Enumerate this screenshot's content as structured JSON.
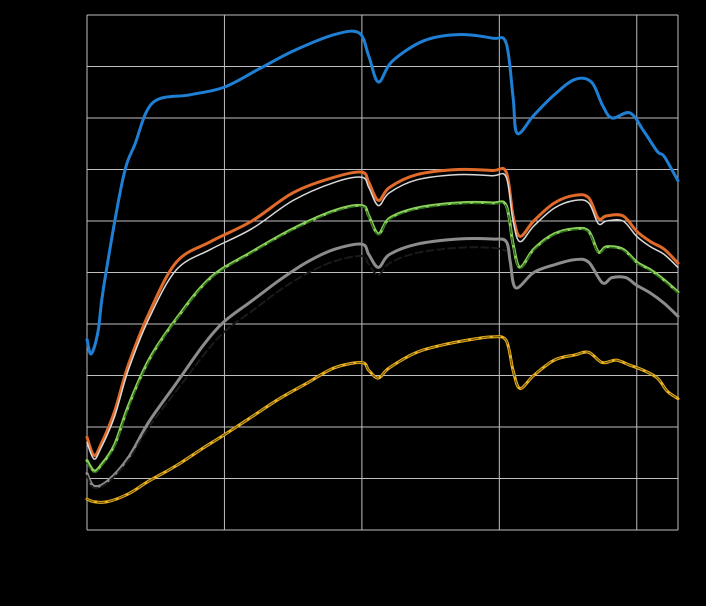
{
  "chart_data": {
    "type": "line",
    "title": "",
    "xlabel": "",
    "ylabel": "",
    "xlim": [
      0,
      4.3
    ],
    "ylim": [
      0,
      10
    ],
    "grid": true,
    "legend": "none",
    "x_grid": [
      0,
      1,
      2,
      3,
      4
    ],
    "y_grid": [
      0,
      1,
      2,
      3,
      4,
      5,
      6,
      7,
      8,
      9,
      10
    ],
    "series": [
      {
        "color": "#1f7fd4",
        "style": "solid",
        "width": 3,
        "points": [
          [
            0,
            3.7
          ],
          [
            0.03,
            3.42
          ],
          [
            0.08,
            3.85
          ],
          [
            0.12,
            4.7
          ],
          [
            0.26,
            6.8
          ],
          [
            0.35,
            7.5
          ],
          [
            0.48,
            8.3
          ],
          [
            0.75,
            8.45
          ],
          [
            1.0,
            8.6
          ],
          [
            1.25,
            8.95
          ],
          [
            1.5,
            9.3
          ],
          [
            1.8,
            9.62
          ],
          [
            1.98,
            9.65
          ],
          [
            2.05,
            9.2
          ],
          [
            2.12,
            8.7
          ],
          [
            2.22,
            9.1
          ],
          [
            2.45,
            9.5
          ],
          [
            2.7,
            9.62
          ],
          [
            2.95,
            9.55
          ],
          [
            3.05,
            9.45
          ],
          [
            3.1,
            8.4
          ],
          [
            3.13,
            7.7
          ],
          [
            3.25,
            8.05
          ],
          [
            3.4,
            8.45
          ],
          [
            3.55,
            8.75
          ],
          [
            3.67,
            8.7
          ],
          [
            3.75,
            8.25
          ],
          [
            3.82,
            8.0
          ],
          [
            3.95,
            8.1
          ],
          [
            4.05,
            7.75
          ],
          [
            4.15,
            7.35
          ],
          [
            4.2,
            7.25
          ],
          [
            4.3,
            6.78
          ]
        ]
      },
      {
        "color": "#e06a2a",
        "style": "solid",
        "width": 3,
        "points": [
          [
            0,
            1.8
          ],
          [
            0.05,
            1.45
          ],
          [
            0.1,
            1.65
          ],
          [
            0.2,
            2.3
          ],
          [
            0.3,
            3.2
          ],
          [
            0.45,
            4.2
          ],
          [
            0.65,
            5.2
          ],
          [
            0.9,
            5.6
          ],
          [
            1.2,
            6.0
          ],
          [
            1.5,
            6.55
          ],
          [
            1.8,
            6.85
          ],
          [
            2.0,
            6.95
          ],
          [
            2.05,
            6.75
          ],
          [
            2.12,
            6.4
          ],
          [
            2.2,
            6.65
          ],
          [
            2.4,
            6.9
          ],
          [
            2.7,
            7.0
          ],
          [
            2.95,
            6.98
          ],
          [
            3.05,
            6.95
          ],
          [
            3.1,
            6.1
          ],
          [
            3.15,
            5.7
          ],
          [
            3.25,
            6.0
          ],
          [
            3.4,
            6.35
          ],
          [
            3.55,
            6.5
          ],
          [
            3.65,
            6.45
          ],
          [
            3.72,
            6.05
          ],
          [
            3.78,
            6.1
          ],
          [
            3.9,
            6.1
          ],
          [
            4.0,
            5.8
          ],
          [
            4.1,
            5.6
          ],
          [
            4.2,
            5.45
          ],
          [
            4.3,
            5.18
          ]
        ]
      },
      {
        "color": "#d9d9d9",
        "style": "solid",
        "width": 1.5,
        "points": [
          [
            0,
            1.7
          ],
          [
            0.05,
            1.38
          ],
          [
            0.1,
            1.58
          ],
          [
            0.2,
            2.2
          ],
          [
            0.3,
            3.1
          ],
          [
            0.45,
            4.1
          ],
          [
            0.65,
            5.05
          ],
          [
            0.9,
            5.45
          ],
          [
            1.2,
            5.85
          ],
          [
            1.5,
            6.4
          ],
          [
            1.8,
            6.75
          ],
          [
            2.0,
            6.85
          ],
          [
            2.05,
            6.65
          ],
          [
            2.12,
            6.3
          ],
          [
            2.2,
            6.55
          ],
          [
            2.4,
            6.8
          ],
          [
            2.7,
            6.9
          ],
          [
            2.95,
            6.88
          ],
          [
            3.05,
            6.85
          ],
          [
            3.1,
            6.0
          ],
          [
            3.15,
            5.6
          ],
          [
            3.25,
            5.9
          ],
          [
            3.4,
            6.25
          ],
          [
            3.55,
            6.4
          ],
          [
            3.65,
            6.35
          ],
          [
            3.72,
            5.95
          ],
          [
            3.78,
            6.0
          ],
          [
            3.9,
            6.0
          ],
          [
            4.0,
            5.7
          ],
          [
            4.1,
            5.5
          ],
          [
            4.2,
            5.35
          ],
          [
            4.3,
            5.1
          ]
        ]
      },
      {
        "color": "#8ccf5a",
        "style": "solid",
        "width": 3,
        "points": [
          [
            0,
            1.35
          ],
          [
            0.05,
            1.15
          ],
          [
            0.1,
            1.25
          ],
          [
            0.2,
            1.65
          ],
          [
            0.3,
            2.4
          ],
          [
            0.45,
            3.3
          ],
          [
            0.65,
            4.1
          ],
          [
            0.9,
            4.9
          ],
          [
            1.2,
            5.4
          ],
          [
            1.5,
            5.85
          ],
          [
            1.8,
            6.2
          ],
          [
            2.0,
            6.3
          ],
          [
            2.05,
            6.1
          ],
          [
            2.12,
            5.75
          ],
          [
            2.2,
            6.05
          ],
          [
            2.4,
            6.25
          ],
          [
            2.7,
            6.35
          ],
          [
            2.95,
            6.35
          ],
          [
            3.05,
            6.3
          ],
          [
            3.1,
            5.55
          ],
          [
            3.15,
            5.1
          ],
          [
            3.25,
            5.45
          ],
          [
            3.4,
            5.75
          ],
          [
            3.55,
            5.85
          ],
          [
            3.65,
            5.8
          ],
          [
            3.72,
            5.4
          ],
          [
            3.78,
            5.5
          ],
          [
            3.9,
            5.45
          ],
          [
            4.0,
            5.2
          ],
          [
            4.1,
            5.05
          ],
          [
            4.2,
            4.85
          ],
          [
            4.3,
            4.62
          ]
        ]
      },
      {
        "color": "#2d6e1e",
        "style": "dashed",
        "width": 1.5,
        "points": [
          [
            0,
            1.3
          ],
          [
            0.05,
            1.12
          ],
          [
            0.1,
            1.22
          ],
          [
            0.2,
            1.62
          ],
          [
            0.3,
            2.36
          ],
          [
            0.45,
            3.27
          ],
          [
            0.65,
            4.08
          ],
          [
            0.9,
            4.88
          ],
          [
            1.2,
            5.38
          ],
          [
            1.5,
            5.83
          ],
          [
            1.8,
            6.18
          ],
          [
            2.0,
            6.28
          ],
          [
            2.05,
            6.08
          ],
          [
            2.12,
            5.73
          ],
          [
            2.2,
            6.03
          ],
          [
            2.4,
            6.23
          ],
          [
            2.7,
            6.33
          ],
          [
            2.95,
            6.33
          ],
          [
            3.05,
            6.28
          ],
          [
            3.1,
            5.53
          ],
          [
            3.15,
            5.08
          ],
          [
            3.25,
            5.43
          ],
          [
            3.4,
            5.73
          ],
          [
            3.55,
            5.83
          ],
          [
            3.65,
            5.78
          ],
          [
            3.72,
            5.38
          ],
          [
            3.78,
            5.48
          ],
          [
            3.9,
            5.43
          ],
          [
            4.0,
            5.18
          ],
          [
            4.1,
            5.03
          ],
          [
            4.2,
            4.83
          ],
          [
            4.3,
            4.6
          ]
        ]
      },
      {
        "color": "#8c8c8c",
        "style": "solid",
        "width": 3,
        "points": [
          [
            0,
            1.1
          ],
          [
            0.05,
            0.85
          ],
          [
            0.15,
            0.95
          ],
          [
            0.3,
            1.4
          ],
          [
            0.45,
            2.1
          ],
          [
            0.65,
            2.85
          ],
          [
            0.85,
            3.6
          ],
          [
            1.0,
            4.05
          ],
          [
            1.2,
            4.45
          ],
          [
            1.4,
            4.85
          ],
          [
            1.6,
            5.2
          ],
          [
            1.8,
            5.45
          ],
          [
            2.0,
            5.55
          ],
          [
            2.05,
            5.35
          ],
          [
            2.12,
            5.1
          ],
          [
            2.2,
            5.35
          ],
          [
            2.4,
            5.55
          ],
          [
            2.7,
            5.65
          ],
          [
            2.95,
            5.65
          ],
          [
            3.05,
            5.6
          ],
          [
            3.08,
            5.2
          ],
          [
            3.12,
            4.7
          ],
          [
            3.25,
            5.0
          ],
          [
            3.4,
            5.15
          ],
          [
            3.55,
            5.25
          ],
          [
            3.65,
            5.2
          ],
          [
            3.75,
            4.8
          ],
          [
            3.82,
            4.9
          ],
          [
            3.92,
            4.9
          ],
          [
            4.0,
            4.75
          ],
          [
            4.1,
            4.6
          ],
          [
            4.2,
            4.4
          ],
          [
            4.3,
            4.15
          ]
        ]
      },
      {
        "color": "#1a1a1a",
        "style": "dashed",
        "width": 2,
        "points": [
          [
            0,
            1.05
          ],
          [
            0.05,
            0.82
          ],
          [
            0.15,
            0.92
          ],
          [
            0.3,
            1.35
          ],
          [
            0.45,
            2.0
          ],
          [
            0.65,
            2.7
          ],
          [
            0.85,
            3.4
          ],
          [
            1.0,
            3.85
          ],
          [
            1.2,
            4.25
          ],
          [
            1.4,
            4.65
          ],
          [
            1.6,
            4.98
          ],
          [
            1.8,
            5.22
          ],
          [
            2.0,
            5.32
          ],
          [
            2.05,
            5.15
          ],
          [
            2.12,
            4.95
          ],
          [
            2.2,
            5.18
          ],
          [
            2.4,
            5.38
          ],
          [
            2.7,
            5.48
          ],
          [
            2.95,
            5.48
          ],
          [
            3.05,
            5.42
          ]
        ]
      },
      {
        "color": "#f0b21e",
        "style": "solid",
        "width": 3,
        "points": [
          [
            0,
            0.6
          ],
          [
            0.05,
            0.55
          ],
          [
            0.15,
            0.55
          ],
          [
            0.3,
            0.7
          ],
          [
            0.45,
            0.95
          ],
          [
            0.65,
            1.25
          ],
          [
            0.85,
            1.6
          ],
          [
            1.0,
            1.85
          ],
          [
            1.2,
            2.2
          ],
          [
            1.4,
            2.55
          ],
          [
            1.6,
            2.85
          ],
          [
            1.8,
            3.15
          ],
          [
            2.0,
            3.25
          ],
          [
            2.05,
            3.1
          ],
          [
            2.12,
            2.95
          ],
          [
            2.2,
            3.15
          ],
          [
            2.4,
            3.45
          ],
          [
            2.6,
            3.6
          ],
          [
            2.8,
            3.7
          ],
          [
            2.95,
            3.75
          ],
          [
            3.05,
            3.68
          ],
          [
            3.1,
            3.1
          ],
          [
            3.15,
            2.75
          ],
          [
            3.25,
            3.0
          ],
          [
            3.4,
            3.3
          ],
          [
            3.55,
            3.4
          ],
          [
            3.65,
            3.45
          ],
          [
            3.75,
            3.25
          ],
          [
            3.85,
            3.3
          ],
          [
            3.95,
            3.2
          ],
          [
            4.05,
            3.1
          ],
          [
            4.15,
            2.95
          ],
          [
            4.22,
            2.7
          ],
          [
            4.3,
            2.55
          ]
        ]
      },
      {
        "color": "#6a5a12",
        "style": "dashed",
        "width": 1.2,
        "points": [
          [
            0,
            0.6
          ],
          [
            0.05,
            0.55
          ],
          [
            0.15,
            0.55
          ],
          [
            0.3,
            0.7
          ],
          [
            0.45,
            0.95
          ],
          [
            0.65,
            1.25
          ],
          [
            0.85,
            1.6
          ],
          [
            1.0,
            1.85
          ],
          [
            1.2,
            2.2
          ],
          [
            1.4,
            2.55
          ],
          [
            1.6,
            2.85
          ],
          [
            1.8,
            3.15
          ],
          [
            2.0,
            3.25
          ],
          [
            2.05,
            3.1
          ],
          [
            2.12,
            2.95
          ],
          [
            2.2,
            3.15
          ],
          [
            2.4,
            3.45
          ],
          [
            2.6,
            3.6
          ],
          [
            2.8,
            3.7
          ],
          [
            2.95,
            3.75
          ],
          [
            3.05,
            3.68
          ],
          [
            3.1,
            3.1
          ],
          [
            3.15,
            2.75
          ],
          [
            3.25,
            3.0
          ],
          [
            3.4,
            3.3
          ],
          [
            3.55,
            3.4
          ],
          [
            3.65,
            3.45
          ],
          [
            3.75,
            3.25
          ],
          [
            3.85,
            3.3
          ],
          [
            3.95,
            3.2
          ],
          [
            4.05,
            3.1
          ],
          [
            4.15,
            2.95
          ],
          [
            4.22,
            2.7
          ],
          [
            4.3,
            2.55
          ]
        ]
      }
    ]
  }
}
